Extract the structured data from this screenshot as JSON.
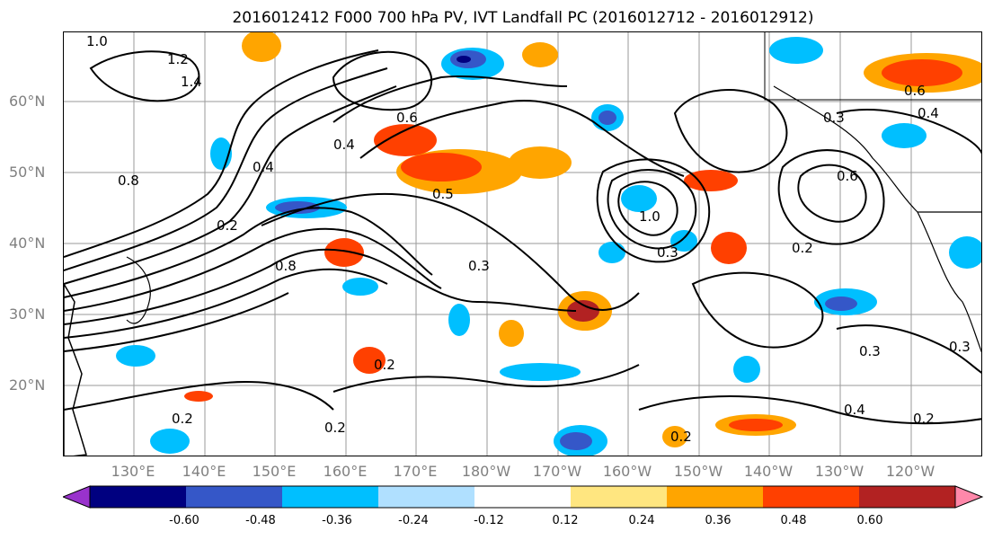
{
  "title": "2016012412 F000 700 hPa PV, IVT Landfall PC (2016012712 - 2016012912)",
  "lat_labels": [
    "60°N",
    "50°N",
    "40°N",
    "30°N",
    "20°N"
  ],
  "lon_labels": [
    "130°E",
    "140°E",
    "150°E",
    "160°E",
    "170°E",
    "180°W",
    "170°W",
    "160°W",
    "150°W",
    "140°W",
    "130°W",
    "120°W"
  ],
  "colorbar": {
    "ticks": [
      "-0.60",
      "-0.48",
      "-0.36",
      "-0.24",
      "-0.12",
      "0.12",
      "0.24",
      "0.36",
      "0.48",
      "0.60"
    ],
    "colors": [
      "#9932cc",
      "#000080",
      "#3557c8",
      "#00bfff",
      "#b0e0ff",
      "#ffffff",
      "#ffe680",
      "#ffa500",
      "#ff4000",
      "#b22222",
      "#ff88aa"
    ]
  },
  "contour_labels": [
    "1.0",
    "1.2",
    "1.4",
    "0.4",
    "0.8",
    "0.6",
    "0.2",
    "0.3",
    "0.5",
    "1.0",
    "0.8",
    "0.3",
    "0.2",
    "0.2",
    "0.4",
    "0.2",
    "0.3",
    "0.2",
    "0.2",
    "0.4",
    "0.2",
    "0.3",
    "0.6",
    "0.4",
    "0.3",
    "0.6"
  ],
  "map_colors": {
    "land": "#000000",
    "grid": "#9a9a9a",
    "contour": "#000000"
  }
}
